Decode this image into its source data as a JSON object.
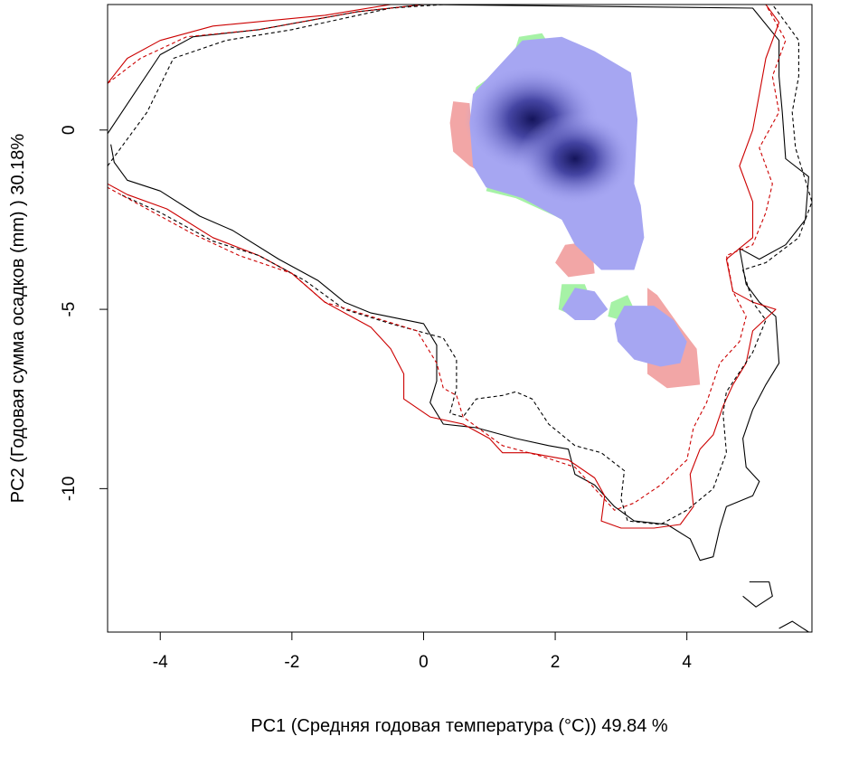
{
  "chart_data": {
    "type": "heatmap",
    "title": "",
    "xlabel": "PC1 (Средняя годовая температура (°C)) 49.84 %",
    "ylabel": "PC2 (Годовая сумма осадков  (mm) ) 30.18%",
    "xlim": [
      -4.8,
      5.9
    ],
    "ylim": [
      -14,
      3.5
    ],
    "x_ticks": [
      -4,
      -2,
      0,
      2,
      4
    ],
    "x_tick_labels": [
      "-4",
      "-2",
      "0",
      "2",
      "4"
    ],
    "y_ticks": [
      0,
      -5,
      -10
    ],
    "y_tick_labels": [
      "0",
      "-5",
      "-10"
    ],
    "grid": false,
    "legend": "none",
    "colors": {
      "density_low": "#a6a6f2",
      "density_high": "#14145a",
      "only_group_a": "#a6f2a6",
      "only_group_b": "#f2a6a6",
      "envelope_a": "#000000",
      "envelope_b": "#cc0000"
    },
    "density_peaks": [
      {
        "x": 1.65,
        "y": 0.3,
        "value": 1.0
      },
      {
        "x": 2.3,
        "y": -0.8,
        "value": 0.85
      }
    ],
    "regions": [
      {
        "name": "only_group_b",
        "outline": [
          [
            0.45,
            0.8
          ],
          [
            0.7,
            0.75
          ],
          [
            0.75,
            -0.5
          ],
          [
            0.9,
            -1.2
          ],
          [
            0.7,
            -1.0
          ],
          [
            0.45,
            -0.6
          ],
          [
            0.4,
            0.2
          ]
        ]
      },
      {
        "name": "only_group_b",
        "outline": [
          [
            2.15,
            -3.2
          ],
          [
            2.55,
            -3.1
          ],
          [
            2.6,
            -4.0
          ],
          [
            2.2,
            -4.1
          ],
          [
            2.0,
            -3.7
          ]
        ]
      },
      {
        "name": "only_group_b",
        "outline": [
          [
            3.4,
            -4.4
          ],
          [
            3.55,
            -4.6
          ],
          [
            3.9,
            -5.5
          ],
          [
            4.15,
            -6.1
          ],
          [
            4.2,
            -7.1
          ],
          [
            3.7,
            -7.2
          ],
          [
            3.4,
            -6.8
          ]
        ]
      },
      {
        "name": "only_group_a",
        "outline": [
          [
            1.45,
            2.6
          ],
          [
            1.8,
            2.7
          ],
          [
            1.9,
            2.4
          ],
          [
            1.1,
            1.6
          ],
          [
            0.8,
            1.2
          ],
          [
            0.75,
            0.9
          ],
          [
            1.1,
            1.5
          ],
          [
            1.4,
            2.3
          ]
        ]
      },
      {
        "name": "only_group_a",
        "outline": [
          [
            1.0,
            -1.4
          ],
          [
            1.6,
            -1.9
          ],
          [
            2.2,
            -2.5
          ],
          [
            2.4,
            -2.8
          ],
          [
            2.0,
            -2.4
          ],
          [
            1.4,
            -1.9
          ],
          [
            0.95,
            -1.7
          ]
        ]
      },
      {
        "name": "only_group_a",
        "outline": [
          [
            2.1,
            -4.3
          ],
          [
            2.45,
            -4.3
          ],
          [
            2.6,
            -5.0
          ],
          [
            2.3,
            -5.2
          ],
          [
            2.05,
            -5.0
          ]
        ]
      },
      {
        "name": "only_group_a",
        "outline": [
          [
            2.85,
            -4.8
          ],
          [
            3.1,
            -4.6
          ],
          [
            3.2,
            -5.0
          ],
          [
            3.0,
            -5.3
          ],
          [
            2.8,
            -5.2
          ]
        ]
      },
      {
        "name": "density",
        "outline": [
          [
            1.5,
            2.5
          ],
          [
            2.1,
            2.6
          ],
          [
            2.6,
            2.2
          ],
          [
            3.15,
            1.6
          ],
          [
            3.25,
            0.3
          ],
          [
            3.2,
            -1.5
          ],
          [
            3.3,
            -2.1
          ],
          [
            3.35,
            -3.0
          ],
          [
            3.2,
            -3.9
          ],
          [
            2.7,
            -3.9
          ],
          [
            2.3,
            -3.2
          ],
          [
            2.1,
            -2.5
          ],
          [
            1.5,
            -1.9
          ],
          [
            0.95,
            -1.6
          ],
          [
            0.75,
            -1.0
          ],
          [
            0.7,
            0.2
          ],
          [
            0.75,
            1.0
          ],
          [
            1.1,
            1.7
          ]
        ]
      },
      {
        "name": "density",
        "outline": [
          [
            2.3,
            -4.4
          ],
          [
            2.6,
            -4.5
          ],
          [
            2.8,
            -5.0
          ],
          [
            2.6,
            -5.3
          ],
          [
            2.3,
            -5.3
          ],
          [
            2.1,
            -5.0
          ]
        ]
      },
      {
        "name": "density",
        "outline": [
          [
            3.05,
            -4.9
          ],
          [
            3.5,
            -4.9
          ],
          [
            3.8,
            -5.3
          ],
          [
            4.0,
            -5.9
          ],
          [
            3.9,
            -6.5
          ],
          [
            3.6,
            -6.6
          ],
          [
            3.2,
            -6.4
          ],
          [
            2.95,
            -5.9
          ],
          [
            2.9,
            -5.4
          ]
        ]
      }
    ],
    "envelopes": [
      {
        "name": "envelope_a",
        "dashed": false,
        "points": [
          [
            -4.8,
            -0.1
          ],
          [
            -4.4,
            1.0
          ],
          [
            -4.0,
            2.1
          ],
          [
            -3.5,
            2.6
          ],
          [
            -2.5,
            2.8
          ],
          [
            -1.0,
            3.3
          ],
          [
            0.0,
            3.5
          ],
          [
            5.0,
            3.4
          ],
          [
            5.4,
            2.5
          ],
          [
            5.4,
            1.5
          ],
          [
            5.45,
            0.5
          ],
          [
            5.5,
            -0.8
          ],
          [
            5.85,
            -1.3
          ],
          [
            5.8,
            -2.5
          ],
          [
            5.5,
            -3.2
          ],
          [
            5.1,
            -3.6
          ],
          [
            4.8,
            -3.3
          ],
          [
            4.9,
            -4.3
          ],
          [
            5.1,
            -4.8
          ],
          [
            5.35,
            -5.2
          ],
          [
            5.4,
            -6.5
          ],
          [
            5.2,
            -7.1
          ],
          [
            5.0,
            -7.8
          ],
          [
            4.85,
            -8.6
          ],
          [
            4.9,
            -9.4
          ],
          [
            5.1,
            -9.8
          ],
          [
            5.0,
            -10.2
          ],
          [
            4.6,
            -10.5
          ],
          [
            4.5,
            -11.1
          ],
          [
            4.4,
            -11.9
          ],
          [
            4.2,
            -12.0
          ],
          [
            4.05,
            -11.4
          ],
          [
            3.7,
            -11.0
          ],
          [
            3.2,
            -10.9
          ],
          [
            2.9,
            -10.5
          ],
          [
            2.6,
            -9.9
          ],
          [
            2.3,
            -9.6
          ],
          [
            2.2,
            -8.9
          ],
          [
            1.9,
            -8.8
          ],
          [
            1.4,
            -8.6
          ],
          [
            0.8,
            -8.3
          ],
          [
            0.3,
            -8.2
          ],
          [
            0.1,
            -7.6
          ],
          [
            0.2,
            -7.0
          ],
          [
            0.2,
            -6.0
          ],
          [
            0.0,
            -5.4
          ],
          [
            -0.8,
            -5.1
          ],
          [
            -1.2,
            -4.8
          ],
          [
            -1.6,
            -4.2
          ],
          [
            -2.2,
            -3.6
          ],
          [
            -2.9,
            -2.8
          ],
          [
            -3.4,
            -2.4
          ],
          [
            -4.0,
            -1.7
          ],
          [
            -4.5,
            -1.4
          ],
          [
            -4.7,
            -0.9
          ],
          [
            -4.75,
            -0.4
          ]
        ]
      },
      {
        "name": "envelope_b",
        "dashed": false,
        "points": [
          [
            -4.8,
            1.3
          ],
          [
            -4.5,
            2.0
          ],
          [
            -4.0,
            2.5
          ],
          [
            -3.2,
            2.9
          ],
          [
            -1.5,
            3.2
          ],
          [
            -0.5,
            3.5
          ],
          [
            5.2,
            3.5
          ],
          [
            5.4,
            3.0
          ],
          [
            5.2,
            2.0
          ],
          [
            5.1,
            1.0
          ],
          [
            5.0,
            0.0
          ],
          [
            4.8,
            -1.0
          ],
          [
            5.0,
            -2.0
          ],
          [
            5.0,
            -3.0
          ],
          [
            4.6,
            -3.6
          ],
          [
            4.7,
            -4.5
          ],
          [
            5.0,
            -4.8
          ],
          [
            5.35,
            -5.0
          ],
          [
            5.0,
            -5.6
          ],
          [
            4.9,
            -6.5
          ],
          [
            4.7,
            -7.1
          ],
          [
            4.55,
            -7.7
          ],
          [
            4.4,
            -8.5
          ],
          [
            4.2,
            -8.9
          ],
          [
            4.05,
            -9.6
          ],
          [
            4.1,
            -10.5
          ],
          [
            3.9,
            -11.0
          ],
          [
            3.5,
            -11.1
          ],
          [
            3.0,
            -11.1
          ],
          [
            2.7,
            -10.9
          ],
          [
            2.75,
            -10.2
          ],
          [
            2.6,
            -9.7
          ],
          [
            2.2,
            -9.2
          ],
          [
            1.6,
            -9.0
          ],
          [
            1.2,
            -9.0
          ],
          [
            1.0,
            -8.6
          ],
          [
            0.6,
            -8.2
          ],
          [
            0.1,
            -8.0
          ],
          [
            -0.3,
            -7.5
          ],
          [
            -0.3,
            -6.8
          ],
          [
            -0.5,
            -6.1
          ],
          [
            -0.8,
            -5.5
          ],
          [
            -1.5,
            -4.8
          ],
          [
            -2.0,
            -4.0
          ],
          [
            -2.5,
            -3.5
          ],
          [
            -3.2,
            -3.0
          ],
          [
            -3.9,
            -2.2
          ],
          [
            -4.5,
            -1.8
          ],
          [
            -4.8,
            -1.5
          ]
        ]
      },
      {
        "name": "envelope_a",
        "dashed": true,
        "points": [
          [
            -4.8,
            -1.0
          ],
          [
            -4.2,
            0.5
          ],
          [
            -3.8,
            2.0
          ],
          [
            -3.0,
            2.5
          ],
          [
            -2.0,
            2.8
          ],
          [
            -0.5,
            3.4
          ],
          [
            0.3,
            3.5
          ],
          [
            5.3,
            3.5
          ],
          [
            5.7,
            2.5
          ],
          [
            5.7,
            1.5
          ],
          [
            5.6,
            0.5
          ],
          [
            5.65,
            -0.5
          ],
          [
            5.9,
            -2.0
          ],
          [
            5.7,
            -3.0
          ],
          [
            5.2,
            -3.7
          ],
          [
            4.85,
            -3.9
          ],
          [
            5.0,
            -4.8
          ],
          [
            5.2,
            -5.3
          ],
          [
            5.0,
            -6.2
          ],
          [
            4.6,
            -7.3
          ],
          [
            4.55,
            -7.9
          ],
          [
            4.6,
            -9.0
          ],
          [
            4.4,
            -10.0
          ],
          [
            4.0,
            -10.6
          ],
          [
            3.6,
            -11.0
          ],
          [
            3.1,
            -10.9
          ],
          [
            3.0,
            -10.3
          ],
          [
            3.05,
            -9.5
          ],
          [
            2.7,
            -9.0
          ],
          [
            2.3,
            -8.8
          ],
          [
            1.9,
            -8.2
          ],
          [
            1.65,
            -7.5
          ],
          [
            1.4,
            -7.3
          ],
          [
            1.2,
            -7.4
          ],
          [
            0.8,
            -7.5
          ],
          [
            0.6,
            -8.0
          ],
          [
            0.4,
            -7.9
          ],
          [
            0.5,
            -7.2
          ],
          [
            0.5,
            -6.4
          ],
          [
            0.3,
            -5.8
          ],
          [
            -0.5,
            -5.4
          ],
          [
            -1.2,
            -5.0
          ],
          [
            -1.8,
            -4.2
          ],
          [
            -2.5,
            -3.5
          ],
          [
            -3.2,
            -3.1
          ],
          [
            -4.0,
            -2.3
          ],
          [
            -4.6,
            -1.8
          ]
        ]
      },
      {
        "name": "envelope_b",
        "dashed": true,
        "points": [
          [
            -4.8,
            1.3
          ],
          [
            -4.3,
            2.0
          ],
          [
            -3.6,
            2.6
          ],
          [
            -2.5,
            2.8
          ],
          [
            -1.0,
            3.3
          ],
          [
            0.0,
            3.5
          ],
          [
            5.2,
            3.5
          ],
          [
            5.5,
            2.5
          ],
          [
            5.3,
            1.5
          ],
          [
            5.4,
            0.5
          ],
          [
            5.1,
            -0.5
          ],
          [
            5.3,
            -1.5
          ],
          [
            5.2,
            -2.3
          ],
          [
            5.0,
            -3.2
          ],
          [
            4.6,
            -3.5
          ],
          [
            4.7,
            -4.5
          ],
          [
            4.9,
            -5.2
          ],
          [
            4.8,
            -5.9
          ],
          [
            4.5,
            -6.5
          ],
          [
            4.3,
            -7.6
          ],
          [
            4.1,
            -8.3
          ],
          [
            4.0,
            -9.2
          ],
          [
            3.6,
            -9.9
          ],
          [
            3.2,
            -10.4
          ],
          [
            2.9,
            -10.6
          ],
          [
            2.55,
            -9.9
          ],
          [
            2.3,
            -9.4
          ],
          [
            1.8,
            -9.1
          ],
          [
            1.2,
            -8.8
          ],
          [
            0.6,
            -8.0
          ],
          [
            0.5,
            -7.4
          ],
          [
            0.3,
            -7.2
          ],
          [
            0.2,
            -6.5
          ],
          [
            -0.1,
            -5.6
          ],
          [
            -0.8,
            -5.2
          ],
          [
            -1.5,
            -4.8
          ],
          [
            -2.0,
            -4.0
          ],
          [
            -2.8,
            -3.5
          ],
          [
            -3.5,
            -2.9
          ],
          [
            -4.3,
            -2.1
          ],
          [
            -4.8,
            -1.6
          ]
        ]
      },
      {
        "name": "envelope_a",
        "dashed": false,
        "points": [
          [
            4.95,
            -12.6
          ],
          [
            5.25,
            -12.6
          ],
          [
            5.3,
            -13.0
          ],
          [
            5.05,
            -13.3
          ],
          [
            4.85,
            -13.0
          ]
        ]
      },
      {
        "name": "envelope_a",
        "dashed": false,
        "points": [
          [
            5.4,
            -13.9
          ],
          [
            5.6,
            -13.7
          ],
          [
            5.85,
            -14.0
          ]
        ]
      }
    ]
  }
}
